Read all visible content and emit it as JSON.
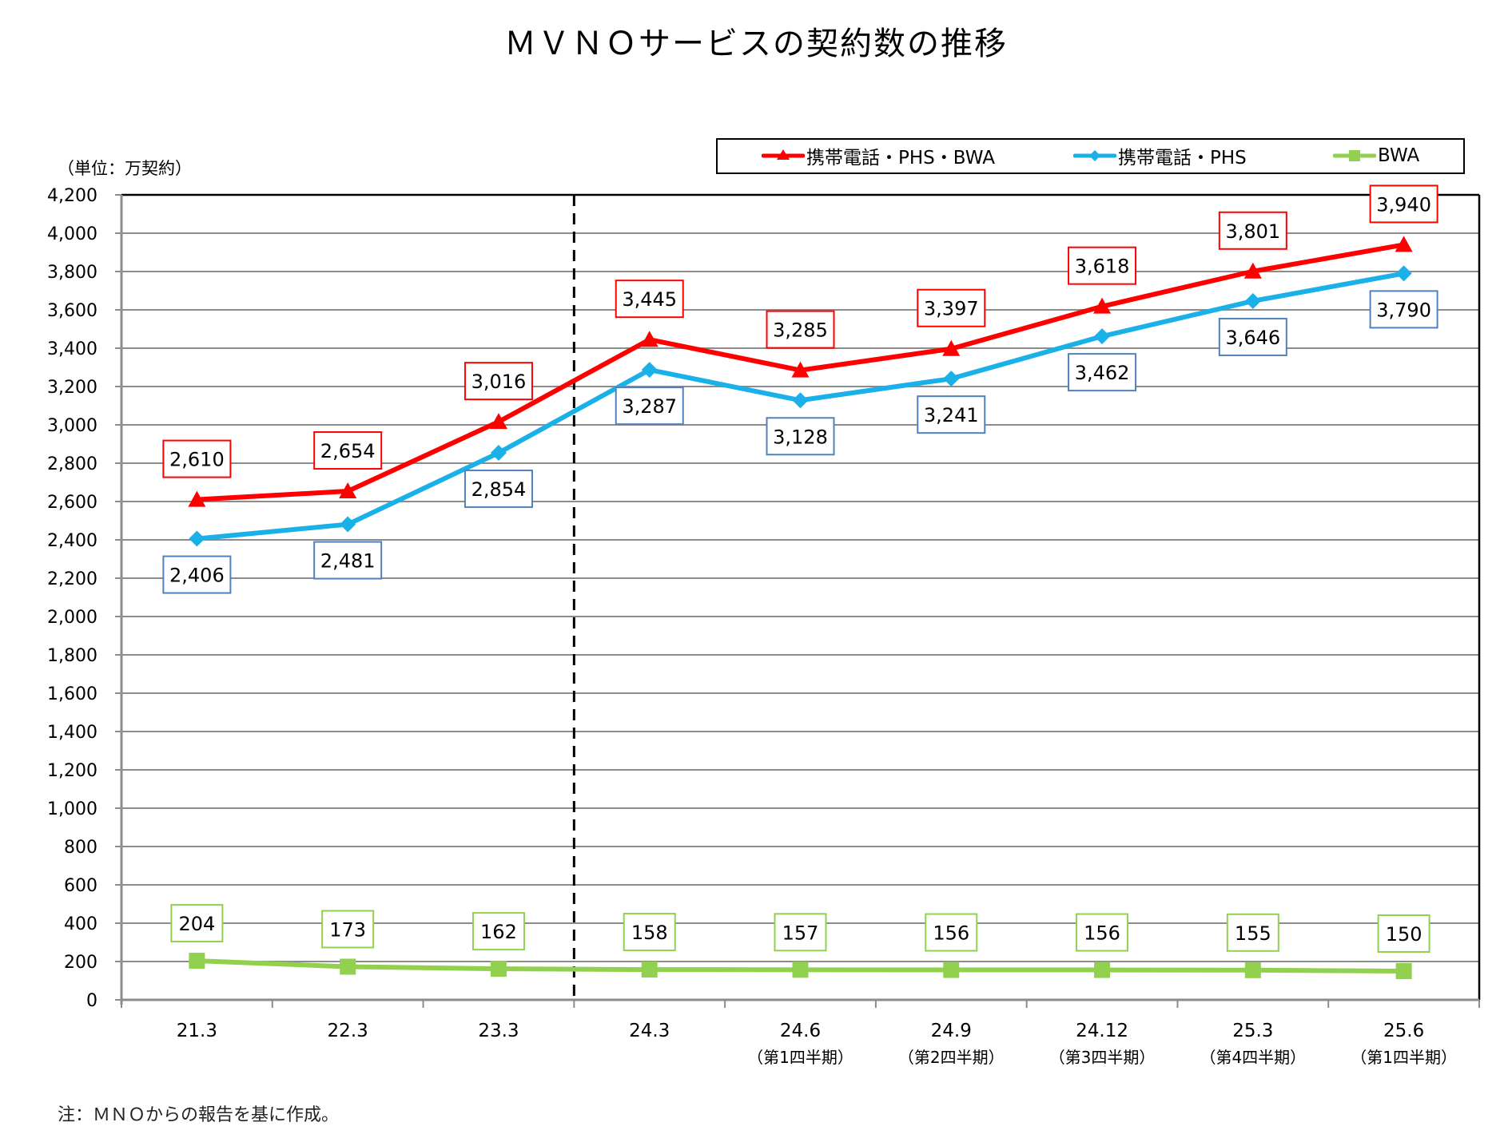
{
  "header": {
    "title": "ＭＶＮＯサービスの契約数の推移",
    "unit": "（単位：万契約）"
  },
  "footnote": "注：ＭＮＯからの報告を基に作成。",
  "chart_data": {
    "type": "line",
    "title": "ＭＶＮＯサービスの契約数の推移",
    "xlabel": "",
    "ylabel": "（単位：万契約）",
    "ylim": [
      0,
      4200
    ],
    "ytick_step": 200,
    "yticks": [
      "0",
      "200",
      "400",
      "600",
      "800",
      "1,000",
      "1,200",
      "1,400",
      "1,600",
      "1,800",
      "2,000",
      "2,200",
      "2,400",
      "2,600",
      "2,800",
      "3,000",
      "3,200",
      "3,400",
      "3,600",
      "3,800",
      "4,000",
      "4,200"
    ],
    "grid": true,
    "legend_position": "top-right",
    "categories": [
      "21.3",
      "22.3",
      "23.3",
      "24.3",
      "24.6",
      "24.9",
      "24.12",
      "25.3",
      "25.6"
    ],
    "category_sublabels": [
      "",
      "",
      "",
      "",
      "（第1四半期）",
      "（第2四半期）",
      "（第3四半期）",
      "（第4四半期）",
      "（第1四半期）"
    ],
    "divider_after_category": "23.3",
    "series": [
      {
        "name": "携帯電話・PHS・BWA",
        "color": "#ff0000",
        "marker": "triangle",
        "label_position": "above",
        "values": [
          2610,
          2654,
          3016,
          3445,
          3285,
          3397,
          3618,
          3801,
          3940
        ],
        "labels": [
          "2,610",
          "2,654",
          "3,016",
          "3,445",
          "3,285",
          "3,397",
          "3,618",
          "3,801",
          "3,940"
        ]
      },
      {
        "name": "携帯電話・PHS",
        "color": "#1ab0e8",
        "label_border": "#4f81bd",
        "marker": "diamond",
        "label_position": "below",
        "values": [
          2406,
          2481,
          2854,
          3287,
          3128,
          3241,
          3462,
          3646,
          3790
        ],
        "labels": [
          "2,406",
          "2,481",
          "2,854",
          "3,287",
          "3,128",
          "3,241",
          "3,462",
          "3,646",
          "3,790"
        ]
      },
      {
        "name": "BWA",
        "color": "#92d050",
        "marker": "square",
        "label_position": "above",
        "values": [
          204,
          173,
          162,
          158,
          157,
          156,
          156,
          155,
          150
        ],
        "labels": [
          "204",
          "173",
          "162",
          "158",
          "157",
          "156",
          "156",
          "155",
          "150"
        ]
      }
    ]
  }
}
